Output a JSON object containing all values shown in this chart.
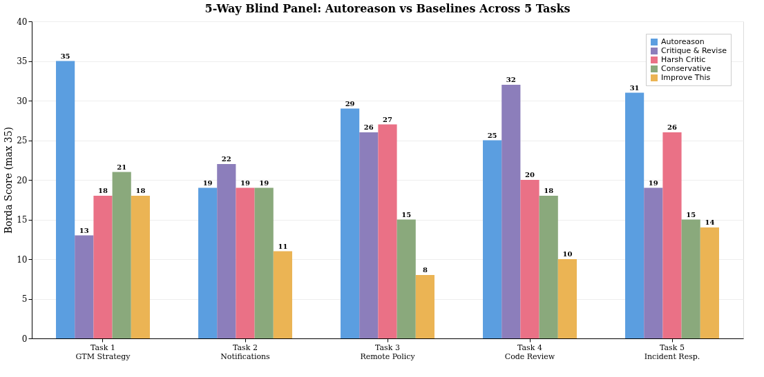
{
  "chart_data": {
    "type": "bar",
    "title": "5-Way Blind Panel: Autoreason vs Baselines Across 5 Tasks",
    "ylabel": "Borda Score (max 35)",
    "categories": [
      "Task 1\nGTM Strategy",
      "Task 2\nNotifications",
      "Task 3\nRemote Policy",
      "Task 4\nCode Review",
      "Task 5\nIncident Resp."
    ],
    "series": [
      {
        "name": "Autoreason",
        "color": "#5b9ee0",
        "values": [
          35,
          19,
          29,
          25,
          31
        ]
      },
      {
        "name": "Critique & Revise",
        "color": "#8c7ebb",
        "values": [
          13,
          22,
          26,
          32,
          19
        ]
      },
      {
        "name": "Harsh Critic",
        "color": "#ea7186",
        "values": [
          18,
          19,
          27,
          20,
          26
        ]
      },
      {
        "name": "Conservative",
        "color": "#8aa97c",
        "values": [
          21,
          19,
          15,
          18,
          15
        ]
      },
      {
        "name": "Improve This",
        "color": "#ebb454",
        "values": [
          18,
          11,
          8,
          10,
          14
        ]
      }
    ],
    "ylim": [
      0,
      40
    ],
    "yticks": [
      0,
      5,
      10,
      15,
      20,
      25,
      30,
      35,
      40
    ],
    "grid": "y",
    "legend": "top right",
    "data_labels": true
  }
}
